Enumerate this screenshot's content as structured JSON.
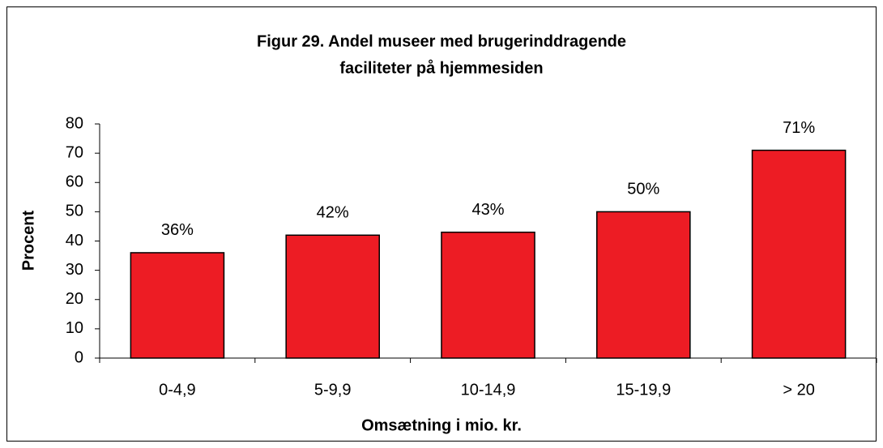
{
  "chart_data": {
    "type": "bar",
    "title": [
      "Figur 29. Andel museer med brugerinddragende",
      "faciliteter på hjemmesiden"
    ],
    "xlabel": "Omsætning i mio. kr.",
    "ylabel": "Procent",
    "categories": [
      "0-4,9",
      "5-9,9",
      "10-14,9",
      "15-19,9",
      "> 20"
    ],
    "values": [
      36,
      42,
      43,
      50,
      71
    ],
    "value_labels": [
      "36%",
      "42%",
      "43%",
      "50%",
      "71%"
    ],
    "color": "#ed1c24",
    "ylim": [
      0,
      80
    ],
    "yticks": [
      0,
      10,
      20,
      30,
      40,
      50,
      60,
      70,
      80
    ],
    "grid": false
  }
}
